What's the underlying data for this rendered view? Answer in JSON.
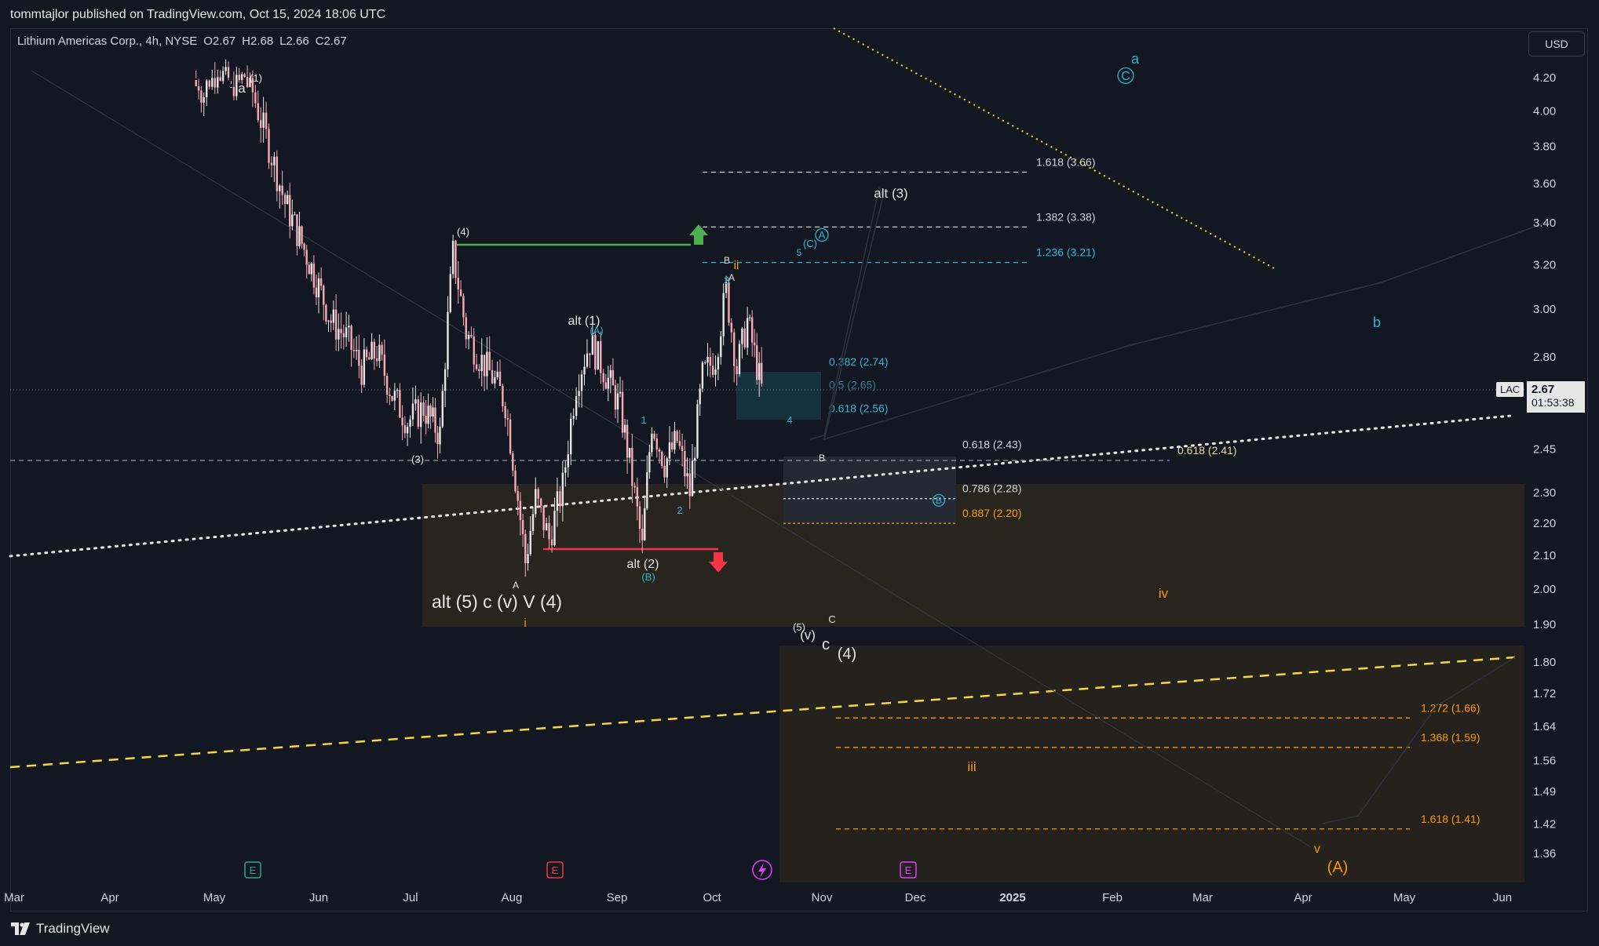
{
  "header": {
    "published": "tommtajlor published on TradingView.com, Oct 15, 2024 18:06 UTC"
  },
  "legend": {
    "symbol": "Lithium Americas Corp., 4h, NYSE",
    "o": "O2.67",
    "h": "H2.68",
    "l": "L2.66",
    "c": "C2.67"
  },
  "currency": "USD",
  "last_price": {
    "symbol": "LAC",
    "value": "2.67",
    "countdown": "01:53:38"
  },
  "footer": {
    "brand": "TradingView"
  },
  "chart_data": {
    "type": "candlestick",
    "symbol": "LAC",
    "timeframe": "4h",
    "y_axis_scale": "log",
    "y_ticks": [
      "4.20",
      "4.00",
      "3.80",
      "3.60",
      "3.40",
      "3.20",
      "3.00",
      "2.80",
      "2.45",
      "2.30",
      "2.20",
      "2.10",
      "2.00",
      "1.90",
      "1.80",
      "1.72",
      "1.64",
      "1.56",
      "1.49",
      "1.42",
      "1.36"
    ],
    "x_ticks": [
      "Mar",
      "Apr",
      "May",
      "Jun",
      "Jul",
      "Aug",
      "Sep",
      "Oct",
      "Nov",
      "Dec",
      "2025",
      "Feb",
      "Mar",
      "Apr",
      "May",
      "Jun"
    ],
    "price_path": [
      [
        "Apr 25",
        4.25
      ],
      [
        "Apr 28",
        4.1
      ],
      [
        "May 2",
        4.35
      ],
      [
        "May 6",
        4.15
      ],
      [
        "May 10",
        4.28
      ],
      [
        "May 14",
        4.0
      ],
      [
        "May 18",
        3.75
      ],
      [
        "May 22",
        3.5
      ],
      [
        "May 27",
        3.3
      ],
      [
        "Jun 1",
        3.1
      ],
      [
        "Jun 5",
        2.95
      ],
      [
        "Jun 10",
        2.88
      ],
      [
        "Jun 15",
        2.75
      ],
      [
        "Jun 20",
        2.82
      ],
      [
        "Jun 25",
        2.65
      ],
      [
        "Jun 30",
        2.55
      ],
      [
        "Jul 5",
        2.6
      ],
      [
        "Jul 10",
        2.5
      ],
      [
        "Jul 14",
        3.25
      ],
      [
        "Jul 18",
        2.9
      ],
      [
        "Jul 22",
        2.8
      ],
      [
        "Jul 26",
        2.72
      ],
      [
        "Jul 30",
        2.62
      ],
      [
        "Aug 5",
        2.08
      ],
      [
        "Aug 8",
        2.28
      ],
      [
        "Aug 12",
        2.15
      ],
      [
        "Aug 16",
        2.32
      ],
      [
        "Aug 20",
        2.7
      ],
      [
        "Aug 24",
        2.86
      ],
      [
        "Aug 28",
        2.75
      ],
      [
        "Sep 2",
        2.6
      ],
      [
        "Sep 5",
        2.4
      ],
      [
        "Sep 9",
        2.12
      ],
      [
        "Sep 12",
        2.55
      ],
      [
        "Sep 16",
        2.4
      ],
      [
        "Sep 20",
        2.48
      ],
      [
        "Sep 24",
        2.3
      ],
      [
        "Sep 28",
        2.72
      ],
      [
        "Oct 2",
        2.8
      ],
      [
        "Oct 5",
        3.08
      ],
      [
        "Oct 8",
        2.75
      ],
      [
        "Oct 11",
        2.95
      ],
      [
        "Oct 15",
        2.67
      ]
    ],
    "annotations": {
      "wave_labels": [
        "a",
        "(1)",
        "(4)",
        "(3)",
        "alt (1)",
        "(A)",
        "1",
        "2",
        "3",
        "4",
        "5",
        "B",
        "A",
        "ii",
        "(C)",
        "A",
        "alt (2)",
        "(B)",
        "A",
        "alt (5) c (v) V (4)",
        "i",
        "(5)",
        "(v)",
        "C",
        "c",
        "(4)",
        "alt (3)",
        "B",
        "B",
        "iv",
        "iii",
        "v",
        "(A)",
        "a",
        "C",
        "b"
      ],
      "fib_levels": [
        {
          "label": "1.618 (3.66)",
          "price": 3.66
        },
        {
          "label": "1.382 (3.38)",
          "price": 3.38
        },
        {
          "label": "1.236 (3.21)",
          "price": 3.21
        },
        {
          "label": "0.382 (2.74)",
          "price": 2.74
        },
        {
          "label": "0.5 (2.65)",
          "price": 2.65
        },
        {
          "label": "0.618 (2.56)",
          "price": 2.56
        },
        {
          "label": "0.618 (2.43)",
          "price": 2.43
        },
        {
          "label": "0.618 (2.41)",
          "price": 2.41
        },
        {
          "label": "0.786 (2.28)",
          "price": 2.28
        },
        {
          "label": "0.887 (2.20)",
          "price": 2.2
        },
        {
          "label": "1.272 (1.66)",
          "price": 1.66
        },
        {
          "label": "1.368 (1.59)",
          "price": 1.59
        },
        {
          "label": "1.618 (1.41)",
          "price": 1.41
        }
      ],
      "event_markers": [
        "E",
        "E",
        "E"
      ]
    },
    "colors": {
      "up": "#e6e6e6",
      "down": "#f7a9b8",
      "cyan": "#29b6d6",
      "orange": "#ff9800",
      "yellow": "#f5d742",
      "green": "#4caf50",
      "red": "#f23645"
    }
  }
}
